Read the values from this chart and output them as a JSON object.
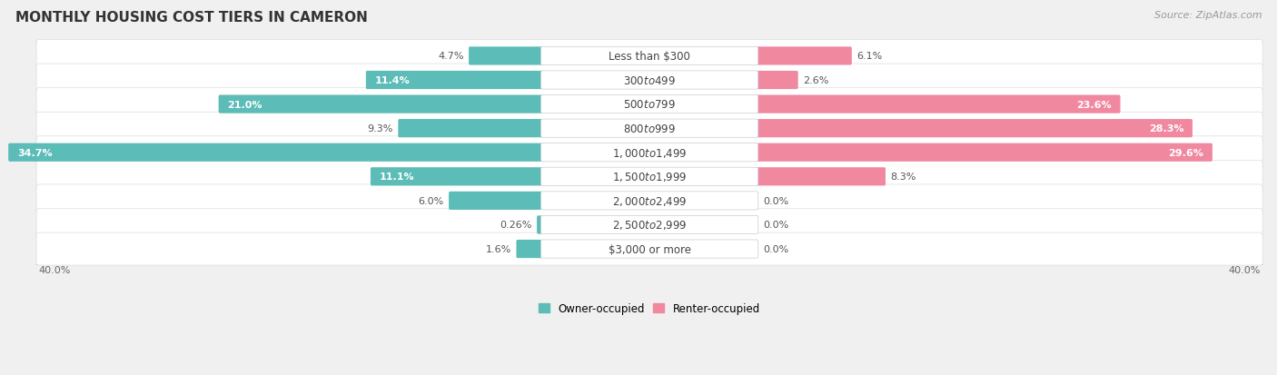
{
  "title": "MONTHLY HOUSING COST TIERS IN CAMERON",
  "source": "Source: ZipAtlas.com",
  "categories": [
    "Less than $300",
    "$300 to $499",
    "$500 to $799",
    "$800 to $999",
    "$1,000 to $1,499",
    "$1,500 to $1,999",
    "$2,000 to $2,499",
    "$2,500 to $2,999",
    "$3,000 or more"
  ],
  "owner_values": [
    4.7,
    11.4,
    21.0,
    9.3,
    34.7,
    11.1,
    6.0,
    0.26,
    1.6
  ],
  "renter_values": [
    6.1,
    2.6,
    23.6,
    28.3,
    29.6,
    8.3,
    0.0,
    0.0,
    0.0
  ],
  "owner_color": "#5bbcb8",
  "renter_color": "#f088a0",
  "owner_label": "Owner-occupied",
  "renter_label": "Renter-occupied",
  "axis_max": 40.0,
  "axis_label_left": "40.0%",
  "axis_label_right": "40.0%",
  "bg_color": "#f0f0f0",
  "row_bg_color": "#ffffff",
  "title_fontsize": 11,
  "source_fontsize": 8,
  "label_fontsize": 8,
  "category_fontsize": 8.5
}
